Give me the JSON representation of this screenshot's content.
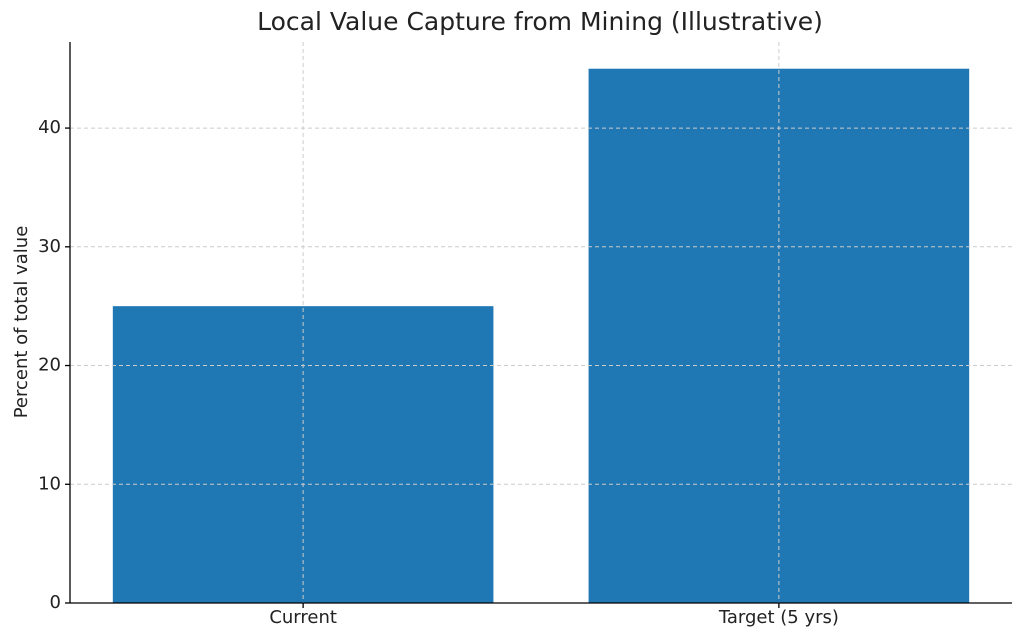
{
  "chart_data": {
    "type": "bar",
    "title": "Local Value Capture from Mining (Illustrative)",
    "y_label": "Percent of total value",
    "categories": [
      "Current",
      "Target (5 yrs)"
    ],
    "values": [
      25,
      45
    ],
    "color": "#1f77b4",
    "ylim": [
      0,
      47.25
    ],
    "yticks": [
      0,
      10,
      20,
      30,
      40
    ],
    "grid": true
  }
}
